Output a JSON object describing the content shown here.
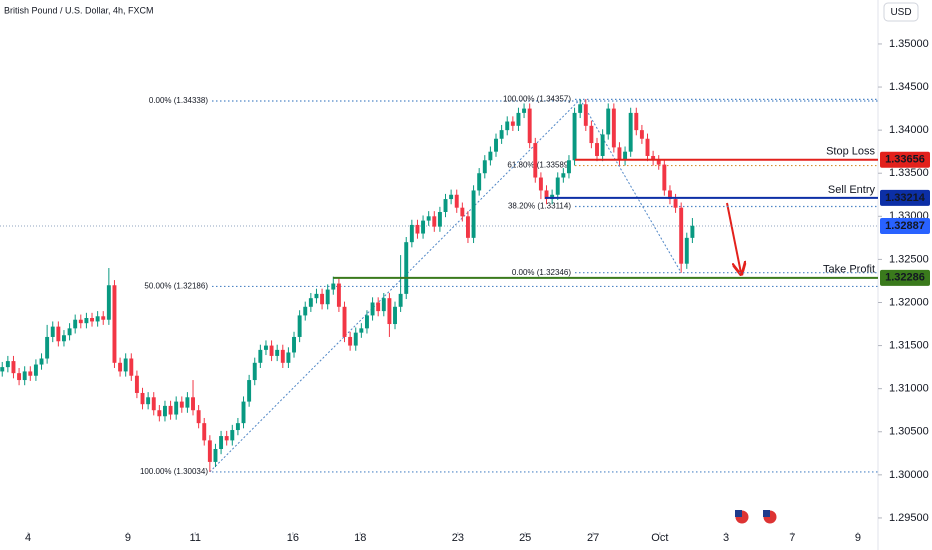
{
  "chart_data": {
    "type": "candlestick",
    "title": "British Pound / U.S. Dollar, 4h, FXCM",
    "currency": "USD",
    "up_color": "#089981",
    "down_color": "#f23645",
    "xlim": [
      -0.4,
      155.9
    ],
    "ylim": [
      1.2936,
      1.3551
    ],
    "xticks": [
      {
        "value": 4.6,
        "label": "4"
      },
      {
        "value": 22.4,
        "label": "9"
      },
      {
        "value": 34.4,
        "label": "11"
      },
      {
        "value": 51.8,
        "label": "16"
      },
      {
        "value": 63.8,
        "label": "18"
      },
      {
        "value": 81.2,
        "label": "23"
      },
      {
        "value": 93.2,
        "label": "25"
      },
      {
        "value": 105.3,
        "label": "27"
      },
      {
        "value": 117.2,
        "label": "Oct"
      },
      {
        "value": 129.0,
        "label": "3"
      },
      {
        "value": 140.8,
        "label": "7"
      },
      {
        "value": 152.5,
        "label": "9"
      }
    ],
    "yticks": [
      {
        "value": 1.35,
        "label": "1.35000"
      },
      {
        "value": 1.345,
        "label": "1.34500"
      },
      {
        "value": 1.34,
        "label": "1.34000"
      },
      {
        "value": 1.335,
        "label": "1.33500"
      },
      {
        "value": 1.33,
        "label": "1.33000"
      },
      {
        "value": 1.325,
        "label": "1.32500"
      },
      {
        "value": 1.32,
        "label": "1.32000"
      },
      {
        "value": 1.315,
        "label": "1.31500"
      },
      {
        "value": 1.31,
        "label": "1.31000"
      },
      {
        "value": 1.305,
        "label": "1.30500"
      },
      {
        "value": 1.3,
        "label": "1.30000"
      },
      {
        "value": 1.295,
        "label": "1.29500"
      }
    ],
    "open": [
      1.312,
      1.3125,
      1.3132,
      1.3118,
      1.311,
      1.312,
      1.3115,
      1.3128,
      1.3135,
      1.316,
      1.3172,
      1.3155,
      1.3162,
      1.317,
      1.318,
      1.3176,
      1.3182,
      1.3178,
      1.3184,
      1.318,
      1.322,
      1.313,
      1.312,
      1.3135,
      1.3115,
      1.3095,
      1.3082,
      1.309,
      1.3075,
      1.3068,
      1.308,
      1.307,
      1.3085,
      1.3078,
      1.309,
      1.3075,
      1.306,
      1.304,
      1.3015,
      1.303,
      1.3045,
      1.304,
      1.3052,
      1.306,
      1.3085,
      1.311,
      1.313,
      1.3145,
      1.315,
      1.3138,
      1.3145,
      1.313,
      1.3142,
      1.316,
      1.3185,
      1.3195,
      1.3205,
      1.321,
      1.3198,
      1.3215,
      1.3222,
      1.3195,
      1.316,
      1.315,
      1.3165,
      1.317,
      1.3185,
      1.32,
      1.319,
      1.3205,
      1.3175,
      1.3195,
      1.321,
      1.327,
      1.329,
      1.328,
      1.3295,
      1.33,
      1.3288,
      1.3305,
      1.332,
      1.3325,
      1.331,
      1.33,
      1.3275,
      1.333,
      1.335,
      1.3365,
      1.3375,
      1.339,
      1.34,
      1.341,
      1.3405,
      1.342,
      1.3425,
      1.3385,
      1.3345,
      1.333,
      1.332,
      1.3325,
      1.3345,
      1.335,
      1.3365,
      1.342,
      1.343,
      1.3405,
      1.3385,
      1.337,
      1.3395,
      1.3425,
      1.338,
      1.3365,
      1.3375,
      1.342,
      1.34,
      1.339,
      1.337,
      1.3365,
      1.336,
      1.333,
      1.332,
      1.331,
      1.3245,
      1.3275
    ],
    "high": [
      1.3131,
      1.3138,
      1.3138,
      1.3124,
      1.3126,
      1.3126,
      1.3134,
      1.3141,
      1.3174,
      1.3178,
      1.3178,
      1.3168,
      1.3176,
      1.3186,
      1.3186,
      1.3188,
      1.3188,
      1.319,
      1.319,
      1.324,
      1.3226,
      1.3136,
      1.3141,
      1.3141,
      1.3121,
      1.3101,
      1.3096,
      1.3096,
      1.3081,
      1.3086,
      1.3086,
      1.3091,
      1.3091,
      1.3096,
      1.311,
      1.3081,
      1.3066,
      1.3046,
      1.3036,
      1.3051,
      1.3051,
      1.3058,
      1.3066,
      1.3091,
      1.3116,
      1.3136,
      1.3151,
      1.3156,
      1.3156,
      1.3151,
      1.3151,
      1.3148,
      1.3166,
      1.3191,
      1.3201,
      1.3211,
      1.3216,
      1.3216,
      1.3221,
      1.323,
      1.3228,
      1.3201,
      1.3166,
      1.3171,
      1.3176,
      1.3191,
      1.3206,
      1.3206,
      1.3211,
      1.3211,
      1.3201,
      1.3255,
      1.3276,
      1.3296,
      1.3296,
      1.3301,
      1.3306,
      1.3306,
      1.3311,
      1.3326,
      1.3331,
      1.3331,
      1.3316,
      1.3306,
      1.3336,
      1.3356,
      1.3371,
      1.3381,
      1.3396,
      1.3406,
      1.3416,
      1.3416,
      1.3426,
      1.3431,
      1.3431,
      1.3391,
      1.3351,
      1.3336,
      1.3331,
      1.3351,
      1.3356,
      1.3371,
      1.3426,
      1.34357,
      1.3436,
      1.3411,
      1.3391,
      1.3401,
      1.3431,
      1.3431,
      1.3386,
      1.3381,
      1.3426,
      1.3426,
      1.3406,
      1.3396,
      1.3376,
      1.3371,
      1.3366,
      1.3336,
      1.3326,
      1.3316,
      1.3281,
      1.3298
    ],
    "low": [
      1.3114,
      1.3119,
      1.3112,
      1.3104,
      1.3104,
      1.3109,
      1.3109,
      1.3122,
      1.3129,
      1.3154,
      1.3149,
      1.3149,
      1.3156,
      1.3164,
      1.317,
      1.317,
      1.3172,
      1.3172,
      1.3174,
      1.3174,
      1.3124,
      1.3114,
      1.3114,
      1.3109,
      1.3089,
      1.3076,
      1.3076,
      1.3069,
      1.3062,
      1.3062,
      1.3064,
      1.3064,
      1.3072,
      1.3072,
      1.3069,
      1.3054,
      1.3034,
      1.30034,
      1.3009,
      1.3024,
      1.3034,
      1.3034,
      1.3046,
      1.3054,
      1.3079,
      1.3104,
      1.3124,
      1.3139,
      1.3132,
      1.3132,
      1.3124,
      1.3124,
      1.3136,
      1.3154,
      1.3179,
      1.3189,
      1.3199,
      1.3192,
      1.3192,
      1.3209,
      1.3189,
      1.3154,
      1.3144,
      1.3144,
      1.3159,
      1.3164,
      1.3179,
      1.3184,
      1.3184,
      1.316,
      1.3169,
      1.3189,
      1.3204,
      1.3264,
      1.3274,
      1.3274,
      1.3289,
      1.3282,
      1.3282,
      1.3299,
      1.3314,
      1.3304,
      1.3294,
      1.3269,
      1.3269,
      1.3324,
      1.3344,
      1.3359,
      1.3369,
      1.3384,
      1.3394,
      1.3399,
      1.3399,
      1.3414,
      1.3379,
      1.3339,
      1.332,
      1.3314,
      1.3314,
      1.3319,
      1.3339,
      1.3344,
      1.3359,
      1.3414,
      1.3399,
      1.3379,
      1.3364,
      1.3364,
      1.3389,
      1.3374,
      1.3359,
      1.3359,
      1.3369,
      1.3394,
      1.3384,
      1.3364,
      1.3359,
      1.3354,
      1.3324,
      1.3314,
      1.3304,
      1.32346,
      1.3239,
      1.3269
    ],
    "close": [
      1.3125,
      1.3132,
      1.3118,
      1.311,
      1.312,
      1.3115,
      1.3128,
      1.3135,
      1.316,
      1.3172,
      1.3155,
      1.3162,
      1.317,
      1.318,
      1.3176,
      1.3182,
      1.3178,
      1.3184,
      1.318,
      1.322,
      1.313,
      1.312,
      1.3135,
      1.3115,
      1.3095,
      1.3082,
      1.309,
      1.3075,
      1.3068,
      1.308,
      1.307,
      1.3085,
      1.3078,
      1.309,
      1.3075,
      1.306,
      1.304,
      1.3015,
      1.303,
      1.3045,
      1.304,
      1.3052,
      1.306,
      1.3085,
      1.311,
      1.313,
      1.3145,
      1.315,
      1.3138,
      1.3145,
      1.313,
      1.3142,
      1.316,
      1.3185,
      1.3195,
      1.3205,
      1.321,
      1.3198,
      1.3215,
      1.3222,
      1.3195,
      1.316,
      1.315,
      1.3165,
      1.317,
      1.3185,
      1.32,
      1.319,
      1.3205,
      1.3175,
      1.3195,
      1.321,
      1.327,
      1.329,
      1.328,
      1.3295,
      1.33,
      1.3288,
      1.3305,
      1.332,
      1.3325,
      1.331,
      1.33,
      1.3275,
      1.333,
      1.335,
      1.3365,
      1.3375,
      1.339,
      1.34,
      1.341,
      1.3405,
      1.342,
      1.3425,
      1.3385,
      1.3345,
      1.333,
      1.332,
      1.3325,
      1.3345,
      1.335,
      1.3365,
      1.342,
      1.343,
      1.3405,
      1.3385,
      1.337,
      1.3395,
      1.3425,
      1.338,
      1.3365,
      1.3375,
      1.342,
      1.34,
      1.339,
      1.337,
      1.3365,
      1.336,
      1.333,
      1.332,
      1.331,
      1.3245,
      1.3275,
      1.3289
    ],
    "last_price": 1.32887,
    "last_color": "#2962ff",
    "fibs": [
      {
        "color": "#4f86c6",
        "levels": [
          {
            "label": "0.00% (1.34338)",
            "value": 1.34338
          },
          {
            "label": "50.00% (1.32186)",
            "value": 1.32186
          },
          {
            "label": "100.00% (1.30034)",
            "value": 1.30034
          }
        ]
      },
      {
        "color": "#4f86c6",
        "levels": [
          {
            "label": "100.00% (1.34357)",
            "value": 1.34357
          },
          {
            "label": "61.80% (1.33589)",
            "value": 1.33589,
            "color": "#d9902f"
          },
          {
            "label": "38.20% (1.33114)",
            "value": 1.33114
          },
          {
            "label": "0.00% (1.32346)",
            "value": 1.32346
          }
        ]
      }
    ],
    "levels": [
      {
        "name": "Stop Loss",
        "value": 1.33656,
        "color": "#e3211c"
      },
      {
        "name": "Sell Entry",
        "value": 1.33214,
        "color": "#0c2fa6"
      },
      {
        "name": "Take Profit",
        "value": 1.32286,
        "color": "#3a7a1c"
      }
    ]
  }
}
